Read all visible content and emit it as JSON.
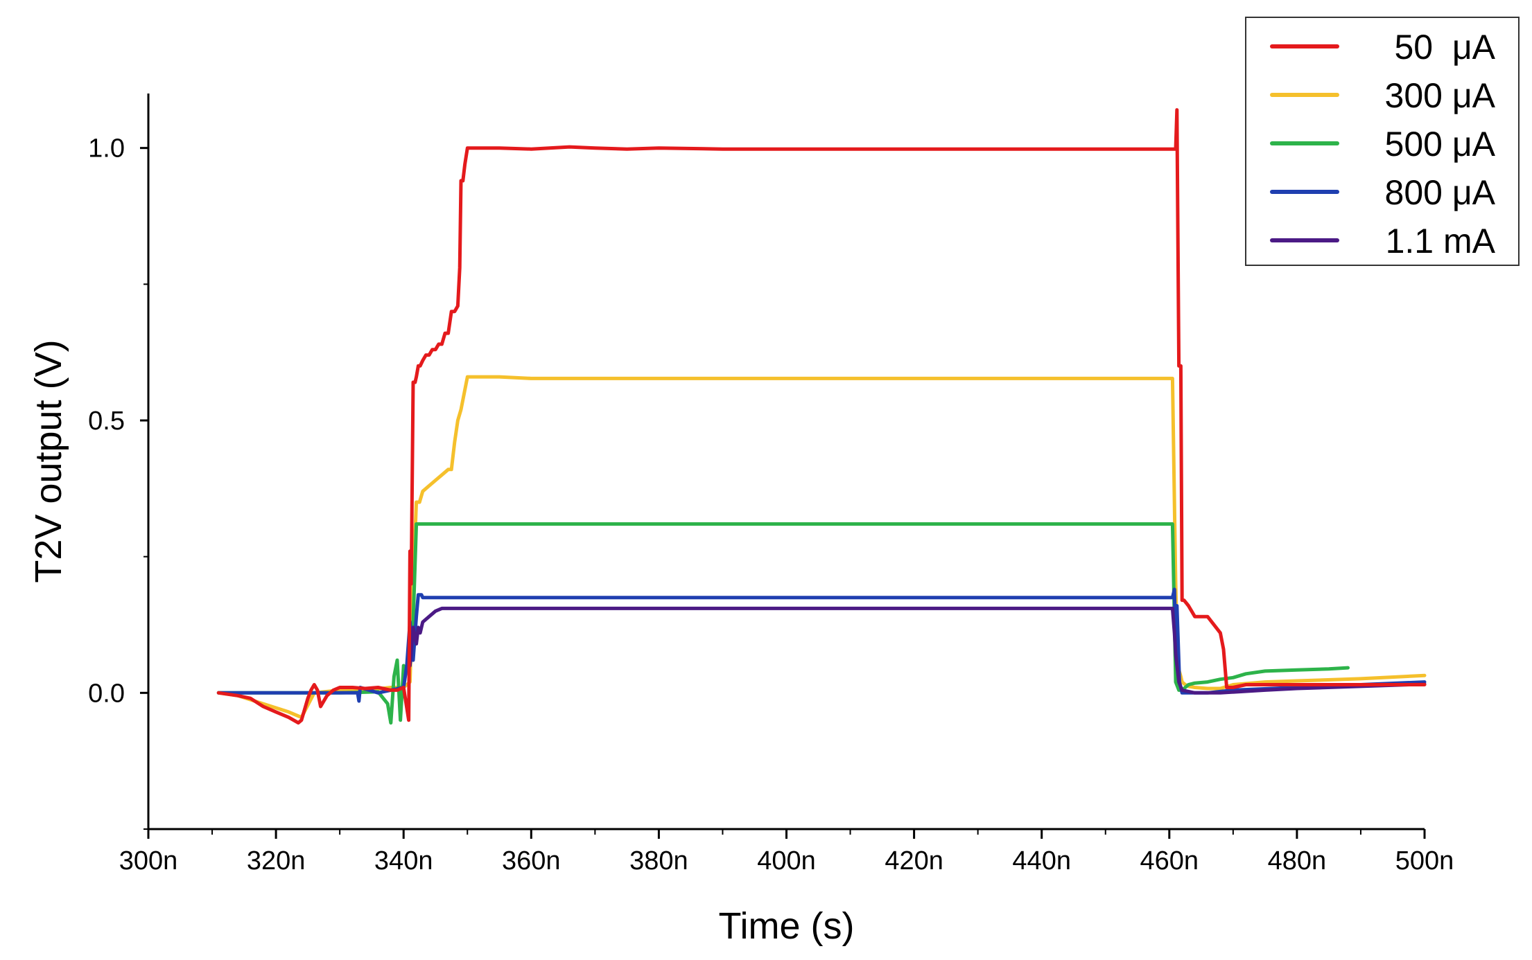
{
  "chart_data": {
    "type": "line",
    "title": "",
    "xlabel": "Time (s)",
    "ylabel": "T2V output (V)",
    "xlim": [
      300,
      500
    ],
    "ylim": [
      -0.25,
      1.1
    ],
    "x_unit_suffix": "n",
    "x_ticks": [
      300,
      320,
      340,
      360,
      380,
      400,
      420,
      440,
      460,
      480,
      500
    ],
    "x_tick_labels": [
      "300n",
      "320n",
      "340n",
      "360n",
      "380n",
      "400n",
      "420n",
      "440n",
      "460n",
      "480n",
      "500n"
    ],
    "y_ticks": [
      0.0,
      0.5,
      1.0
    ],
    "y_tick_labels": [
      "0.0",
      "0.5",
      "1.0"
    ],
    "grid": false,
    "legend_position": "top-right",
    "series": [
      {
        "name": " 50  μA",
        "color": "#e41a1c",
        "x": [
          311,
          314,
          316,
          318,
          320,
          322,
          323.5,
          324,
          325,
          325.5,
          326,
          326.5,
          327,
          327.5,
          328,
          329,
          330,
          332,
          334,
          336,
          338,
          339,
          340,
          340.8,
          341,
          341.2,
          341.5,
          341.8,
          342,
          342.3,
          342.6,
          343,
          343.5,
          344,
          344.5,
          345,
          345.5,
          346,
          346.5,
          347,
          347.5,
          348,
          348.5,
          348.8,
          349,
          349.3,
          349.6,
          350,
          355,
          360,
          366,
          370,
          375,
          380,
          390,
          400,
          420,
          440,
          460,
          461,
          461.2,
          461.5,
          461.8,
          462,
          462.3,
          463,
          464,
          466,
          468,
          468.5,
          469,
          470,
          472,
          475,
          480,
          490,
          500
        ],
        "y": [
          0.0,
          -0.005,
          -0.01,
          -0.025,
          -0.035,
          -0.045,
          -0.055,
          -0.05,
          -0.01,
          0.005,
          0.015,
          0.005,
          -0.025,
          -0.015,
          -0.005,
          0.005,
          0.01,
          0.01,
          0.008,
          0.01,
          0.005,
          0.005,
          0.01,
          -0.05,
          0.26,
          0.2,
          0.57,
          0.57,
          0.58,
          0.6,
          0.6,
          0.61,
          0.62,
          0.62,
          0.63,
          0.63,
          0.64,
          0.64,
          0.66,
          0.66,
          0.7,
          0.7,
          0.71,
          0.78,
          0.94,
          0.94,
          0.97,
          1.0,
          1.0,
          0.998,
          1.002,
          1.0,
          0.998,
          1.0,
          0.998,
          0.998,
          0.998,
          0.998,
          0.998,
          0.998,
          1.07,
          0.6,
          0.6,
          0.17,
          0.17,
          0.16,
          0.14,
          0.14,
          0.11,
          0.08,
          0.01,
          0.01,
          0.015,
          0.015,
          0.015,
          0.015,
          0.015
        ]
      },
      {
        "name": "300 μA",
        "color": "#f5c02c",
        "x": [
          311,
          314,
          318,
          322,
          324,
          326,
          330,
          334,
          338,
          340,
          341,
          341.5,
          342,
          342.5,
          343,
          344,
          345,
          346,
          347,
          347.5,
          348,
          348.5,
          349,
          350,
          355,
          360,
          380,
          400,
          420,
          440,
          460.5,
          461,
          461.3,
          461.8,
          462,
          462.5,
          463,
          464,
          466,
          468,
          470,
          475,
          480,
          490,
          500
        ],
        "y": [
          0.0,
          -0.005,
          -0.02,
          -0.035,
          -0.045,
          0.0,
          0.005,
          0.005,
          0.01,
          0.01,
          0.02,
          0.2,
          0.35,
          0.35,
          0.37,
          0.38,
          0.39,
          0.4,
          0.41,
          0.41,
          0.46,
          0.5,
          0.52,
          0.58,
          0.58,
          0.577,
          0.577,
          0.577,
          0.577,
          0.577,
          0.577,
          0.2,
          0.05,
          0.03,
          0.02,
          0.015,
          0.012,
          0.01,
          0.008,
          0.008,
          0.015,
          0.02,
          0.022,
          0.026,
          0.032
        ]
      },
      {
        "name": "500 μA",
        "color": "#2db34a",
        "x": [
          311,
          320,
          330,
          336,
          337.5,
          338,
          338.5,
          339,
          339.5,
          340,
          340.5,
          341,
          341.5,
          342,
          343,
          345,
          350,
          360,
          380,
          400,
          420,
          440,
          460.5,
          461,
          461.5,
          462,
          462.5,
          463,
          464,
          466,
          468,
          470,
          472,
          475,
          480,
          485,
          488
        ],
        "y": [
          0.0,
          0.0,
          0.0,
          0.002,
          -0.02,
          -0.055,
          0.03,
          0.06,
          -0.05,
          0.05,
          0.04,
          0.05,
          0.13,
          0.31,
          0.31,
          0.31,
          0.31,
          0.31,
          0.31,
          0.31,
          0.31,
          0.31,
          0.31,
          0.02,
          0.005,
          0.005,
          0.01,
          0.015,
          0.018,
          0.02,
          0.025,
          0.028,
          0.035,
          0.04,
          0.042,
          0.044,
          0.046
        ]
      },
      {
        "name": "800 μA",
        "color": "#1f3fb0",
        "x": [
          311,
          320,
          330,
          332.8,
          333,
          333.2,
          336,
          340,
          340.5,
          341,
          341.5,
          342,
          342.3,
          342.8,
          343,
          350,
          360,
          380,
          400,
          420,
          440,
          460.5,
          460.8,
          461,
          461.2,
          461.6,
          462,
          463,
          466,
          470,
          480,
          490,
          500
        ],
        "y": [
          0.0,
          0.0,
          0.0,
          0.0,
          -0.015,
          0.01,
          0.0,
          0.01,
          0.05,
          0.13,
          0.06,
          0.14,
          0.18,
          0.18,
          0.175,
          0.175,
          0.175,
          0.175,
          0.175,
          0.175,
          0.175,
          0.175,
          0.19,
          0.08,
          0.16,
          0.02,
          0.0,
          0.0,
          0.0,
          0.005,
          0.01,
          0.015,
          0.02
        ]
      },
      {
        "name": "1.1 mA",
        "color": "#4b1a85",
        "x": [
          341,
          341.5,
          342,
          342.3,
          342.6,
          343,
          343.5,
          344,
          345,
          346,
          347,
          350,
          360,
          380,
          400,
          420,
          440,
          460.5,
          460.8,
          461,
          461.5,
          462,
          464,
          468,
          475,
          480,
          490,
          500
        ],
        "y": [
          0.05,
          0.12,
          0.09,
          0.12,
          0.11,
          0.13,
          0.135,
          0.14,
          0.15,
          0.155,
          0.155,
          0.155,
          0.155,
          0.155,
          0.155,
          0.155,
          0.155,
          0.155,
          0.11,
          0.07,
          0.02,
          0.005,
          0.0,
          0.0,
          0.005,
          0.008,
          0.012,
          0.016
        ]
      }
    ]
  }
}
